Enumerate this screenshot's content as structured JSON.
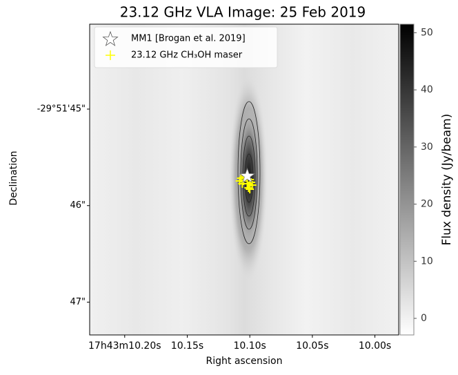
{
  "chart_data": {
    "type": "image",
    "title": "23.12 GHz VLA Image: 25 Feb 2019",
    "x_label": "Right ascension",
    "y_label": "Declination",
    "xlim": [
      10.228,
      9.981
    ],
    "ylim": [
      47.34,
      44.12
    ],
    "xticks": [
      {
        "value": 10.2,
        "label": "17h43m10.20s"
      },
      {
        "value": 10.15,
        "label": "10.15s"
      },
      {
        "value": 10.1,
        "label": "10.10s"
      },
      {
        "value": 10.05,
        "label": "10.05s"
      },
      {
        "value": 10.0,
        "label": "10.00s"
      }
    ],
    "yticks": [
      {
        "value": 45,
        "label": "-29°51'45\""
      },
      {
        "value": 46,
        "label": "46\""
      },
      {
        "value": 47,
        "label": "47\""
      }
    ],
    "colorbar": {
      "label": "Flux density (Jy/beam)",
      "lim": [
        -2.9,
        51.5
      ],
      "ticks": [
        0,
        10,
        20,
        30,
        40,
        50
      ]
    },
    "series": [
      {
        "name": "MM1 [Brogan et al. 2019]",
        "marker": "star",
        "color": "#ffffff",
        "x": [
          10.102
        ],
        "y": [
          45.694
        ]
      },
      {
        "name": "23.12 GHz CH₃OH maser",
        "marker": "plus",
        "color": "#ffff00",
        "x": [
          10.107,
          10.105,
          10.102,
          10.1,
          10.098,
          10.106,
          10.101,
          10.103,
          10.099,
          10.108,
          10.1,
          10.102
        ],
        "y": [
          45.716,
          45.744,
          45.773,
          45.73,
          45.787,
          45.773,
          45.816,
          45.701,
          45.759,
          45.744,
          45.83,
          45.73
        ]
      }
    ],
    "legend": "upper left"
  }
}
